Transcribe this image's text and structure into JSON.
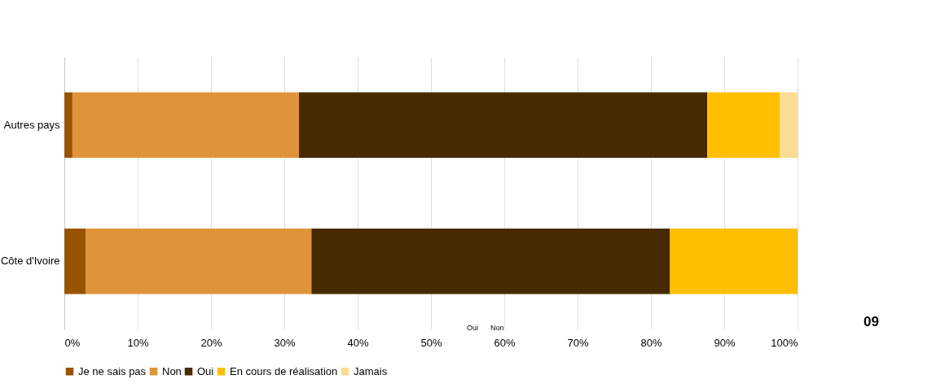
{
  "chart_data": {
    "type": "bar",
    "orientation": "horizontal",
    "stacked": true,
    "categories": [
      "Autres pays",
      "Côte d'Ivoire"
    ],
    "series": [
      {
        "name": "Je ne sais pas",
        "color": "#985400",
        "values": [
          1.1,
          2.9
        ]
      },
      {
        "name": "Non",
        "color": "#e0943a",
        "values": [
          30.9,
          30.8
        ]
      },
      {
        "name": "Oui",
        "color": "#472a00",
        "values": [
          55.7,
          48.9
        ]
      },
      {
        "name": "En cours de réalisation",
        "color": "#ffbf00",
        "values": [
          9.9,
          17.4
        ]
      },
      {
        "name": "Jamais",
        "color": "#fcdc93",
        "values": [
          2.4,
          0
        ]
      }
    ],
    "xlim": [
      0,
      100
    ],
    "xticks": [
      {
        "value": 0,
        "label": "0%"
      },
      {
        "value": 10,
        "label": "10%"
      },
      {
        "value": 20,
        "label": "20%"
      },
      {
        "value": 30,
        "label": "30%"
      },
      {
        "value": 40,
        "label": "40%"
      },
      {
        "value": 50,
        "label": "50%"
      },
      {
        "value": 60,
        "label": "60%"
      },
      {
        "value": 70,
        "label": "70%"
      },
      {
        "value": 80,
        "label": "80%"
      },
      {
        "value": 90,
        "label": "90%"
      },
      {
        "value": 100,
        "label": "100%"
      }
    ],
    "grid": "x",
    "legend": "bottom",
    "annotations": [
      "Oui",
      "Non",
      "09"
    ]
  }
}
